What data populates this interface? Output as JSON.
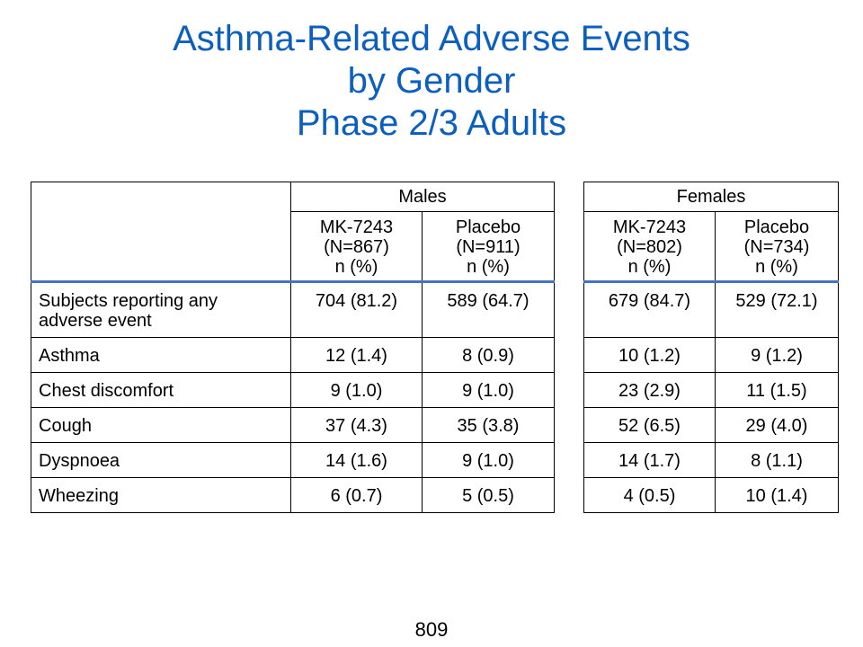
{
  "title": {
    "line1": "Asthma-Related Adverse Events",
    "line2": "by Gender",
    "line3": "Phase 2/3 Adults"
  },
  "table": {
    "groups": [
      "Males",
      "Females"
    ],
    "columns": [
      {
        "drug": "MK-7243",
        "n": "(N=867)",
        "unit": "n (%)"
      },
      {
        "drug": "Placebo",
        "n": "(N=911)",
        "unit": "n (%)"
      },
      {
        "drug": "MK-7243",
        "n": "(N=802)",
        "unit": "n (%)"
      },
      {
        "drug": "Placebo",
        "n": "(N=734)",
        "unit": "n (%)"
      }
    ],
    "rows": [
      {
        "label": "Subjects reporting any adverse event",
        "values": [
          "704 (81.2)",
          "589 (64.7)",
          "679 (84.7)",
          "529 (72.1)"
        ]
      },
      {
        "label": "Asthma",
        "values": [
          "12 (1.4)",
          "8 (0.9)",
          "10 (1.2)",
          "9 (1.2)"
        ]
      },
      {
        "label": "Chest discomfort",
        "values": [
          "9 (1.0)",
          "9 (1.0)",
          "23 (2.9)",
          "11 (1.5)"
        ]
      },
      {
        "label": "Cough",
        "values": [
          "37 (4.3)",
          "35 (3.8)",
          "52 (6.5)",
          "29 (4.0)"
        ]
      },
      {
        "label": "Dyspnoea",
        "values": [
          "14 (1.6)",
          "9 (1.0)",
          "14 (1.7)",
          "8 (1.1)"
        ]
      },
      {
        "label": "Wheezing",
        "values": [
          "6 (0.7)",
          "5 (0.5)",
          "4 (0.5)",
          "10 (1.4)"
        ]
      }
    ]
  },
  "page_number": "809"
}
